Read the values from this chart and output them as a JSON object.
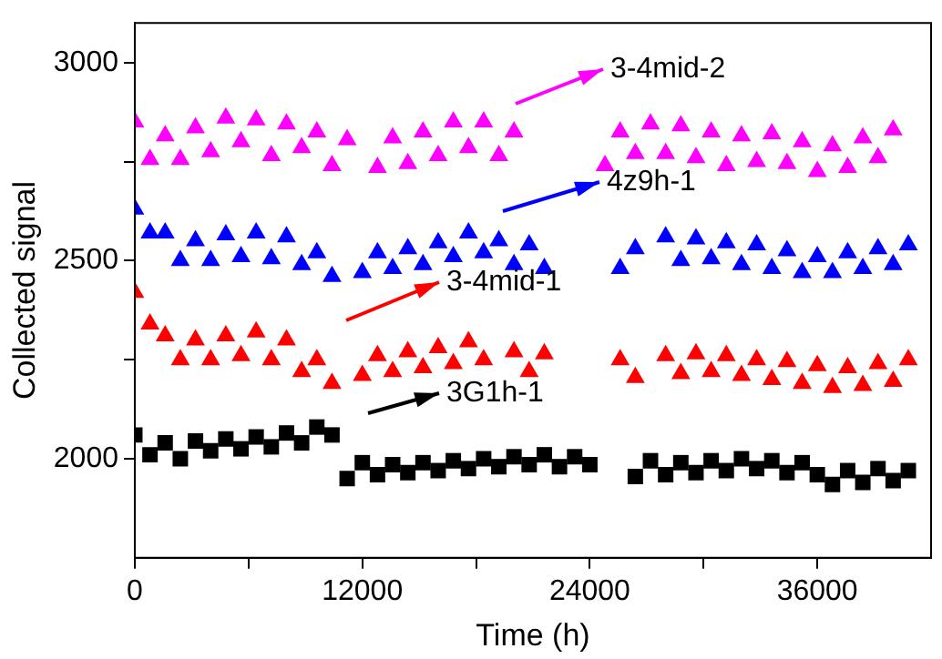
{
  "chart_data": {
    "type": "scatter",
    "xlabel": "Time (h)",
    "ylabel": "Collected signal",
    "x": [
      0,
      800,
      1600,
      2400,
      3200,
      4000,
      4800,
      5600,
      6400,
      7200,
      8000,
      8800,
      9600,
      10400,
      11200,
      12000,
      12800,
      13600,
      14400,
      15200,
      16000,
      16800,
      17600,
      18400,
      19200,
      20000,
      20800,
      21600,
      22400,
      23200,
      24000,
      24800,
      25600,
      26400,
      27200,
      28000,
      28800,
      29600,
      30400,
      31200,
      32000,
      32800,
      33600,
      34400,
      35200,
      36000,
      36800,
      37600,
      38400,
      39200,
      40000,
      40800
    ],
    "series": [
      {
        "name": "3-4mid-2",
        "color": "#ff00ff",
        "marker": "triangle",
        "values": [
          2850,
          2755,
          2815,
          2755,
          2835,
          2775,
          2860,
          2800,
          2855,
          2765,
          2845,
          2785,
          2825,
          2740,
          2805,
          null,
          2735,
          2810,
          2745,
          2825,
          2765,
          2850,
          2785,
          2850,
          2765,
          2825,
          null,
          null,
          null,
          null,
          null,
          2740,
          2825,
          2770,
          2845,
          2770,
          2840,
          2760,
          2825,
          2740,
          2815,
          2750,
          2820,
          2745,
          2800,
          2725,
          2790,
          2735,
          2810,
          2760,
          2830,
          null
        ]
      },
      {
        "name": "4z9h-1",
        "color": "#0000ff",
        "marker": "triangle",
        "values": [
          2630,
          2570,
          2570,
          2500,
          2550,
          2500,
          2565,
          2510,
          2570,
          2505,
          2560,
          2490,
          2520,
          2460,
          null,
          2470,
          2520,
          2480,
          2530,
          2490,
          2545,
          2510,
          2570,
          2520,
          2550,
          2490,
          2540,
          2480,
          null,
          null,
          null,
          null,
          2480,
          2530,
          null,
          2560,
          2500,
          2555,
          2505,
          2545,
          2490,
          2540,
          2480,
          2525,
          2470,
          2510,
          2470,
          2520,
          2480,
          2530,
          2490,
          2540
        ]
      },
      {
        "name": "3-4mid-1",
        "color": "#ff0000",
        "marker": "triangle",
        "values": [
          2420,
          2340,
          2310,
          2250,
          2300,
          2250,
          2310,
          2260,
          2320,
          2250,
          2300,
          2220,
          2250,
          2190,
          null,
          2210,
          2260,
          2220,
          2270,
          2230,
          2280,
          2240,
          2295,
          2250,
          null,
          2270,
          2220,
          2265,
          null,
          null,
          null,
          null,
          2250,
          2205,
          null,
          2260,
          2215,
          2265,
          2220,
          2260,
          2210,
          2250,
          2200,
          2245,
          2190,
          2235,
          2180,
          2230,
          2185,
          2240,
          2195,
          2250
        ]
      },
      {
        "name": "3G1h-1",
        "color": "#000000",
        "marker": "square",
        "values": [
          2060,
          2010,
          2040,
          2000,
          2045,
          2020,
          2050,
          2025,
          2055,
          2030,
          2065,
          2040,
          2080,
          2060,
          1950,
          1990,
          1960,
          1985,
          1965,
          1990,
          1970,
          1995,
          1975,
          2000,
          1980,
          2005,
          1985,
          2010,
          1980,
          2005,
          1985,
          null,
          null,
          1955,
          1995,
          1960,
          1990,
          1965,
          1995,
          1970,
          2000,
          1975,
          1995,
          1965,
          1990,
          1960,
          1935,
          1970,
          1940,
          1975,
          1945,
          1970
        ]
      }
    ],
    "xlim": [
      0,
      42000
    ],
    "xticks": [
      0,
      {
        "value": 6000,
        "label": null
      },
      12000,
      {
        "value": 18000,
        "label": null
      },
      24000,
      {
        "value": 30000,
        "label": null
      },
      36000
    ],
    "ylim": [
      1750,
      3100
    ],
    "yticks": [
      2000,
      {
        "value": 2250,
        "label": null
      },
      2500,
      {
        "value": 2750,
        "label": null
      },
      3000
    ],
    "grid": false,
    "legend": "top"
  }
}
